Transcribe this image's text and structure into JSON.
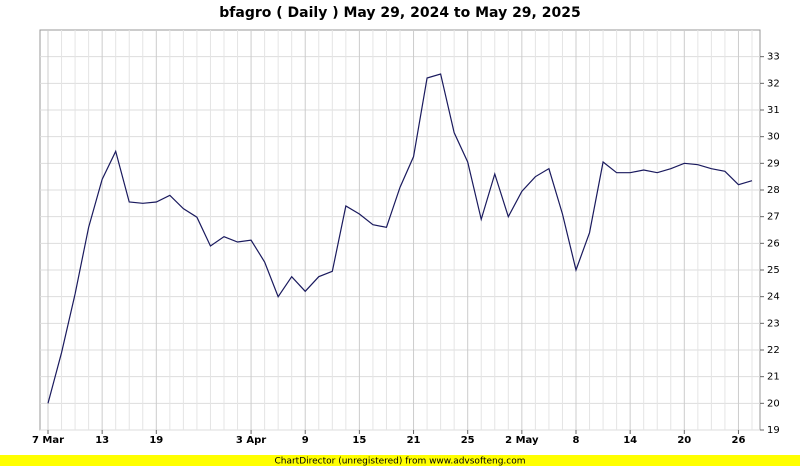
{
  "chart_data": {
    "type": "line",
    "title": "bfagro ( Daily ) May 29, 2024 to May 29, 2025",
    "footer": "ChartDirector (unregistered) from www.advsofteng.com",
    "categories": [
      "7 Mar",
      null,
      null,
      null,
      "13",
      null,
      null,
      null,
      "19",
      null,
      null,
      null,
      null,
      null,
      null,
      "3 Apr",
      null,
      null,
      null,
      "9",
      null,
      null,
      null,
      "15",
      null,
      null,
      null,
      "21",
      null,
      null,
      null,
      "25",
      null,
      null,
      null,
      "2 May",
      null,
      null,
      null,
      "8",
      null,
      null,
      null,
      "14",
      null,
      null,
      null,
      "20",
      null,
      null,
      null,
      "26",
      null
    ],
    "series": [
      {
        "name": "bfagro",
        "color": "#1a1a5e",
        "values": [
          20.0,
          21.9,
          24.1,
          26.6,
          28.4,
          29.45,
          27.55,
          27.5,
          27.55,
          27.8,
          27.3,
          26.98,
          25.9,
          26.25,
          26.05,
          26.12,
          25.3,
          24.0,
          24.75,
          24.2,
          24.75,
          24.95,
          27.4,
          27.1,
          26.7,
          26.6,
          28.1,
          29.25,
          32.2,
          32.35,
          30.15,
          29.05,
          26.9,
          28.6,
          27.0,
          27.95,
          28.5,
          28.8,
          27.1,
          25.0,
          26.4,
          29.05,
          28.65,
          28.65,
          28.75,
          28.65,
          28.8,
          29.0,
          28.95,
          28.8,
          28.7,
          28.2,
          28.35
        ]
      }
    ],
    "ylim": [
      19,
      34
    ],
    "yticks": [
      19,
      20,
      21,
      22,
      23,
      24,
      25,
      26,
      27,
      28,
      29,
      30,
      31,
      32,
      33
    ],
    "grid": true
  }
}
